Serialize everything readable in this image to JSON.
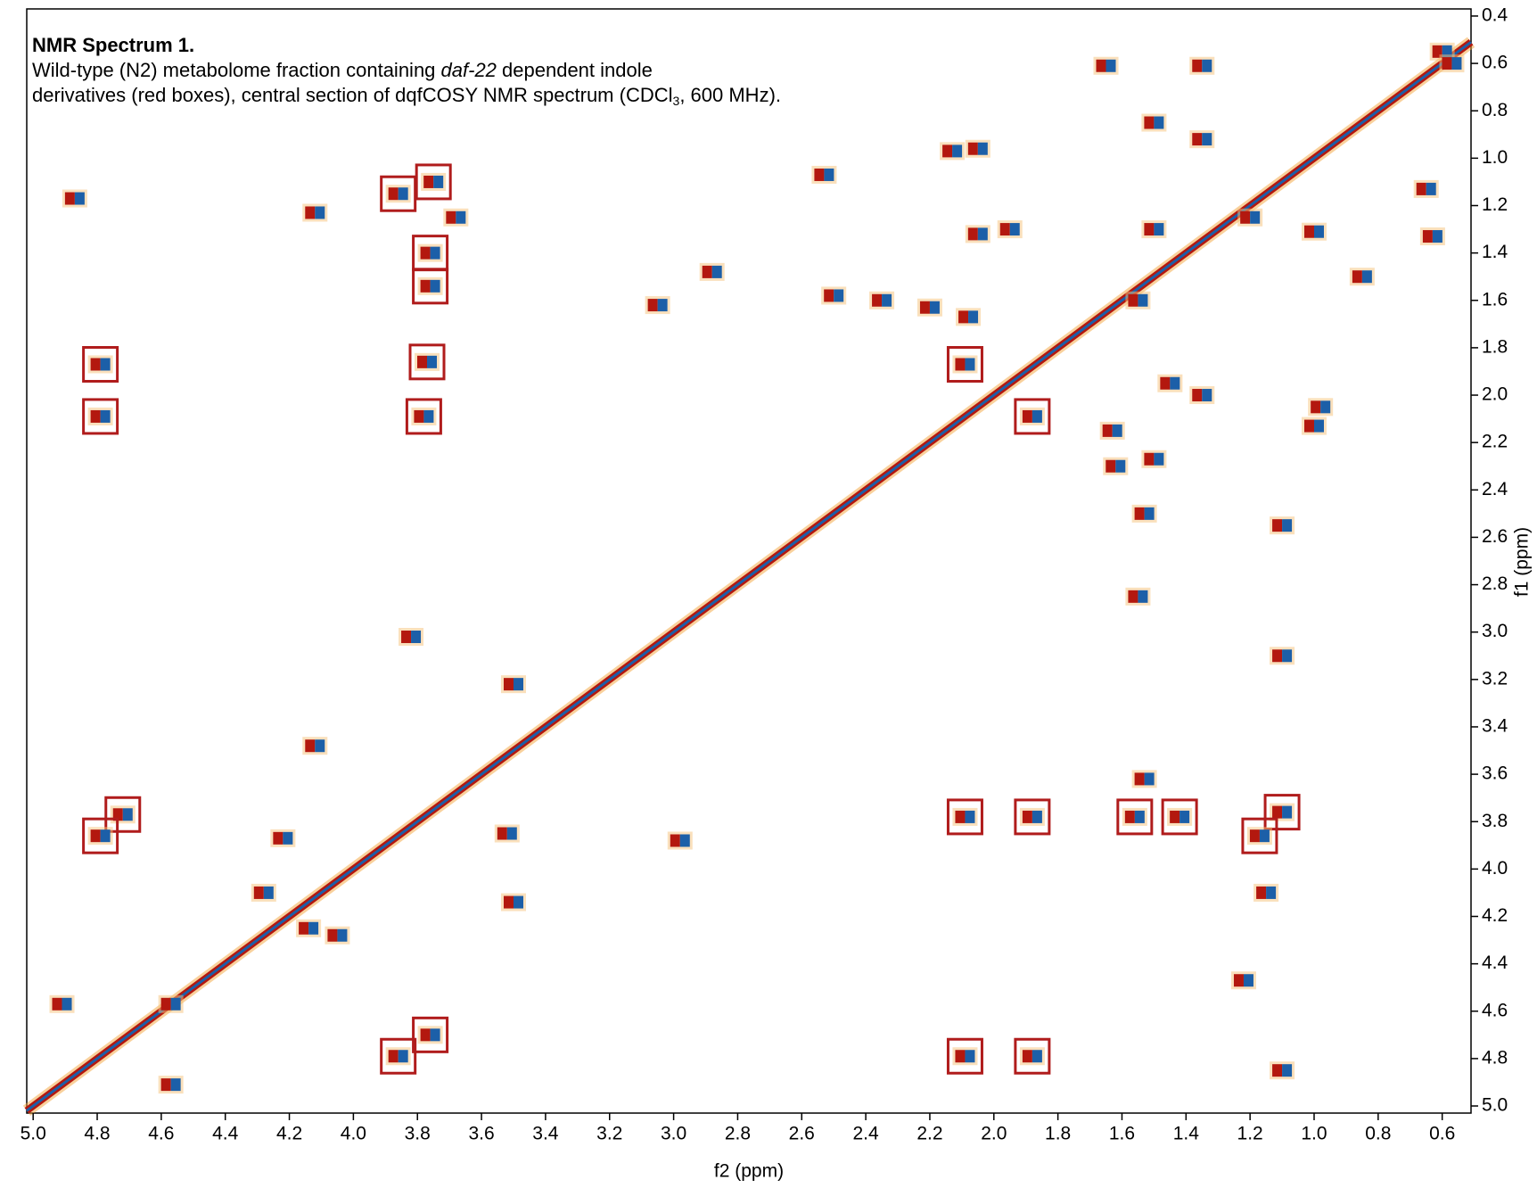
{
  "chart_data": {
    "type": "cosy",
    "title": "NMR Spectrum 1.",
    "subtitle": [
      "Wild-type (N2) metabolome fraction containing ",
      "daf-22",
      " dependent indole",
      "derivatives (red boxes), central section of dqfCOSY NMR spectrum (CDCl",
      "3",
      ", 600 MHz)."
    ],
    "x_label": "f2 (ppm)",
    "y_label": "f1 (ppm)",
    "xlim": [
      5.02,
      0.51
    ],
    "ylim": [
      0.37,
      5.03
    ],
    "xticks": [
      {
        "value": 5.0,
        "label": "5.0"
      },
      4.8,
      4.6,
      4.4,
      4.2,
      {
        "value": 4.0,
        "label": "4.0"
      },
      3.8,
      3.6,
      3.4,
      3.2,
      {
        "value": 3.0,
        "label": "3.0"
      },
      2.8,
      2.6,
      2.4,
      2.2,
      {
        "value": 2.0,
        "label": "2.0"
      },
      1.8,
      1.6,
      1.4,
      1.2,
      {
        "value": 1.0,
        "label": "1.0"
      },
      0.8,
      0.6
    ],
    "yticks": [
      0.4,
      0.6,
      0.8,
      {
        "value": 1.0,
        "label": "1.0"
      },
      1.2,
      1.4,
      1.6,
      1.8,
      {
        "value": 2.0,
        "label": "2.0"
      },
      2.2,
      2.4,
      2.6,
      2.8,
      {
        "value": 3.0,
        "label": "3.0"
      },
      3.2,
      3.4,
      3.6,
      3.8,
      {
        "value": 4.0,
        "label": "4.0"
      },
      4.2,
      4.4,
      4.6,
      4.8,
      {
        "value": 5.0,
        "label": "5.0"
      }
    ],
    "positive_color": "#b3180f",
    "negative_color": "#1c5fa8",
    "box_color": "#b01c1c",
    "boxed_peaks": {
      "x": [
        3.75,
        3.86,
        3.76,
        3.76,
        3.77,
        3.78,
        4.79,
        4.79,
        2.09,
        1.88,
        4.72,
        4.79,
        2.09,
        1.88,
        1.56,
        1.42,
        1.1,
        1.17,
        3.76,
        3.86,
        2.09,
        1.88
      ],
      "y": [
        1.1,
        1.15,
        1.4,
        1.54,
        1.86,
        2.09,
        1.87,
        2.09,
        1.87,
        2.09,
        3.77,
        3.86,
        3.78,
        3.78,
        3.78,
        3.78,
        3.76,
        3.86,
        4.7,
        4.79,
        4.79,
        4.79
      ]
    },
    "peaks": {
      "x": [
        4.87,
        4.12,
        3.68,
        2.53,
        2.13,
        2.05,
        1.65,
        1.35,
        0.6,
        0.57,
        1.5,
        1.35,
        0.65,
        0.63,
        2.05,
        1.95,
        2.5,
        2.35,
        2.2,
        2.08,
        1.55,
        1.5,
        1.2,
        1.0,
        0.85,
        1.35,
        1.45,
        0.98,
        1.0,
        1.63,
        1.62,
        1.5,
        1.53,
        1.1,
        1.55,
        1.1,
        1.53,
        4.12,
        3.5,
        4.28,
        4.14,
        4.05,
        4.57,
        4.91,
        4.57,
        3.5,
        3.05,
        2.88,
        1.15,
        1.22,
        1.1,
        3.82,
        2.98,
        4.22,
        3.52
      ],
      "y": [
        1.17,
        1.23,
        1.25,
        1.07,
        0.97,
        0.96,
        0.61,
        0.61,
        0.55,
        0.6,
        0.85,
        0.92,
        1.13,
        1.33,
        1.32,
        1.3,
        1.58,
        1.6,
        1.63,
        1.67,
        1.6,
        1.3,
        1.25,
        1.31,
        1.5,
        2.0,
        1.95,
        2.05,
        2.13,
        2.15,
        2.3,
        2.27,
        2.5,
        2.55,
        2.85,
        3.1,
        3.62,
        3.48,
        4.14,
        4.1,
        4.25,
        4.28,
        4.57,
        4.57,
        4.91,
        3.22,
        1.62,
        1.48,
        4.1,
        4.47,
        4.85,
        3.02,
        3.88,
        3.87,
        3.85
      ]
    }
  }
}
